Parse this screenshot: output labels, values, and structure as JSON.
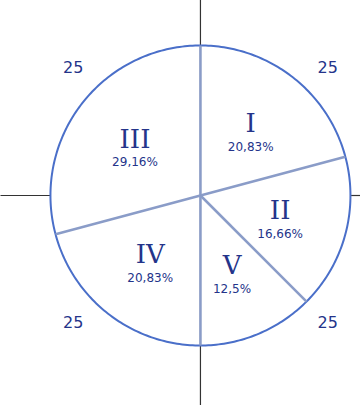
{
  "chart_data": {
    "type": "pie",
    "categories": [
      "I",
      "II",
      "V",
      "IV",
      "III"
    ],
    "values": [
      20.83,
      16.66,
      12.5,
      20.83,
      29.16
    ],
    "value_labels": [
      "20,83%",
      "16,66%",
      "12,5%",
      "20,83%",
      "29,16%"
    ],
    "data_labels": true,
    "color": "#4a6fc9",
    "annotations": [
      "25",
      "25",
      "25",
      "25"
    ]
  }
}
